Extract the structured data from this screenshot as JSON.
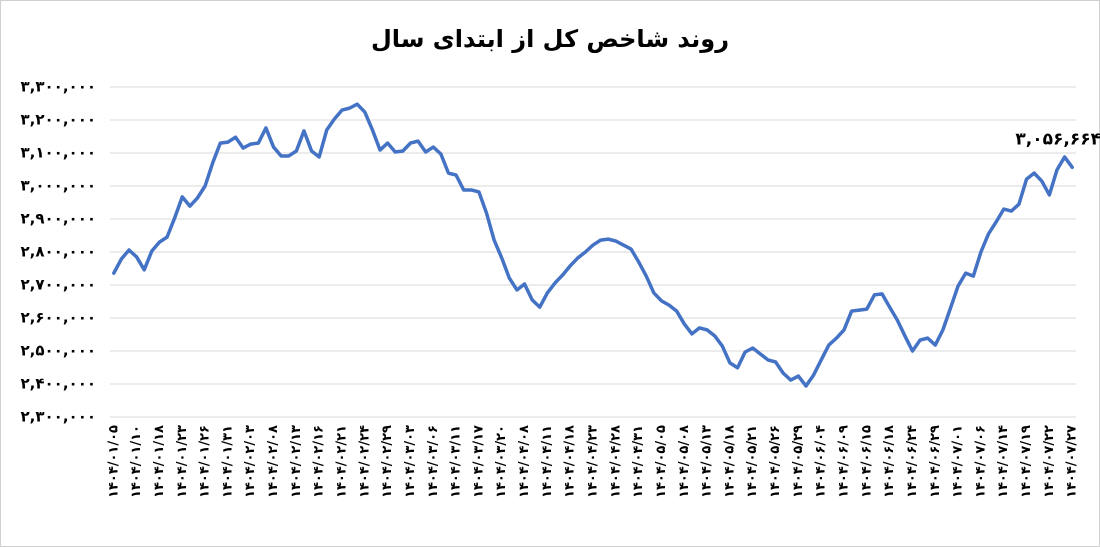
{
  "chart_data": {
    "type": "line",
    "title": "روند شاخص کل از ابتدای سال",
    "categories": [
      "۱۴۰۴/۰۱/۰۵",
      null,
      null,
      "۱۴۰۴/۰۱/۱۰",
      null,
      null,
      "۱۴۰۴/۰۱/۱۸",
      null,
      null,
      "۱۴۰۴/۰۱/۲۳",
      null,
      null,
      "۱۴۰۴/۰۱/۲۶",
      null,
      null,
      "۱۴۰۴/۰۱/۳۱",
      null,
      null,
      "۱۴۰۴/۰۲/۰۳",
      null,
      null,
      "۱۴۰۴/۰۲/۰۸",
      null,
      null,
      "۱۴۰۴/۰۲/۱۳",
      null,
      null,
      "۱۴۰۴/۰۲/۱۶",
      null,
      null,
      "۱۴۰۴/۰۲/۲۱",
      null,
      null,
      "۱۴۰۴/۰۲/۲۴",
      null,
      null,
      "۱۴۰۴/۰۲/۲۹",
      null,
      null,
      "۱۴۰۴/۰۳/۰۳",
      null,
      null,
      "۱۴۰۴/۰۳/۰۶",
      null,
      null,
      "۱۴۰۴/۰۳/۱۱",
      null,
      null,
      "۱۴۰۴/۰۳/۱۷",
      null,
      null,
      "۱۴۰۴/۰۳/۲۰",
      null,
      null,
      "۱۴۰۴/۰۴/۰۸",
      null,
      null,
      "۱۴۰۴/۰۴/۱۱",
      null,
      null,
      "۱۴۰۴/۰۴/۱۸",
      null,
      null,
      "۱۴۰۴/۰۴/۲۳",
      null,
      null,
      "۱۴۰۴/۰۴/۲۸",
      null,
      null,
      "۱۴۰۴/۰۴/۳۱",
      null,
      null,
      "۱۴۰۴/۰۵/۰۵",
      null,
      null,
      "۱۴۰۴/۰۵/۰۸",
      null,
      null,
      "۱۴۰۴/۰۵/۱۳",
      null,
      null,
      "۱۴۰۴/۰۵/۱۸",
      null,
      null,
      "۱۴۰۴/۰۵/۲۱",
      null,
      null,
      "۱۴۰۴/۰۵/۲۶",
      null,
      null,
      "۱۴۰۴/۰۵/۲۹",
      null,
      null,
      "۱۴۰۴/۰۶/۰۴",
      null,
      null,
      "۱۴۰۴/۰۶/۰۹",
      null,
      null,
      "۱۴۰۴/۰۶/۱۵",
      null,
      null,
      "۱۴۰۴/۰۶/۱۸",
      null,
      null,
      "۱۴۰۴/۰۶/۲۴",
      null,
      null,
      "۱۴۰۴/۰۶/۲۹",
      null,
      null,
      "۱۴۰۴/۰۷/۰۱",
      null,
      null,
      "۱۴۰۴/۰۷/۰۶",
      null,
      null,
      "۱۴۰۴/۰۷/۱۴",
      null,
      null,
      "۱۴۰۴/۰۷/۱۹",
      null,
      null,
      "۱۴۰۴/۰۷/۲۲",
      null,
      null,
      "۱۴۰۴/۰۷/۲۷"
    ],
    "values": [
      2736000,
      2779000,
      2806000,
      2785000,
      2746000,
      2803000,
      2830000,
      2845000,
      2903000,
      2967000,
      2939000,
      2964000,
      3000000,
      3070000,
      3130000,
      3133000,
      3148000,
      3115000,
      3127000,
      3130000,
      3176000,
      3118000,
      3091000,
      3091000,
      3106000,
      3167000,
      3106000,
      3088000,
      3170000,
      3203000,
      3230000,
      3236000,
      3248000,
      3224000,
      3170000,
      3109000,
      3130000,
      3103000,
      3106000,
      3130000,
      3136000,
      3103000,
      3118000,
      3097000,
      3039000,
      3033000,
      2988000,
      2988000,
      2982000,
      2918000,
      2836000,
      2782000,
      2721000,
      2685000,
      2703000,
      2655000,
      2633000,
      2676000,
      2706000,
      2730000,
      2758000,
      2782000,
      2800000,
      2821000,
      2836000,
      2839000,
      2833000,
      2821000,
      2809000,
      2770000,
      2727000,
      2676000,
      2652000,
      2639000,
      2621000,
      2582000,
      2552000,
      2570000,
      2564000,
      2546000,
      2515000,
      2464000,
      2449000,
      2497000,
      2509000,
      2491000,
      2473000,
      2467000,
      2433000,
      2412000,
      2424000,
      2394000,
      2427000,
      2473000,
      2518000,
      2539000,
      2564000,
      2621000,
      2624000,
      2627000,
      2670000,
      2673000,
      2633000,
      2594000,
      2546000,
      2500000,
      2533000,
      2539000,
      2518000,
      2564000,
      2630000,
      2697000,
      2736000,
      2727000,
      2800000,
      2855000,
      2891000,
      2930000,
      2924000,
      2945000,
      3021000,
      3039000,
      3015000,
      2973000,
      3049000,
      3088000,
      3056664
    ],
    "value_labels": [
      null,
      null,
      null,
      null,
      null,
      null,
      null,
      null,
      null,
      null,
      null,
      null,
      null,
      null,
      null,
      null,
      null,
      null,
      null,
      null,
      null,
      null,
      null,
      null,
      null,
      null,
      null,
      null,
      null,
      null,
      null,
      null,
      null,
      null,
      null,
      null,
      null,
      null,
      null,
      null,
      null,
      null,
      null,
      null,
      null,
      null,
      null,
      null,
      null,
      null,
      null,
      null,
      null,
      null,
      null,
      null,
      null,
      null,
      null,
      null,
      null,
      null,
      null,
      null,
      null,
      null,
      null,
      null,
      null,
      null,
      null,
      null,
      null,
      null,
      null,
      null,
      null,
      null,
      null,
      null,
      null,
      null,
      null,
      null,
      null,
      null,
      null,
      null,
      null,
      null,
      null,
      null,
      null,
      null,
      null,
      null,
      null,
      null,
      null,
      null,
      null,
      null,
      null,
      null,
      null,
      null,
      null,
      null,
      null,
      null,
      null,
      null,
      null,
      null,
      null,
      null,
      null,
      null,
      null,
      null,
      null,
      null,
      null,
      null,
      null,
      null,
      "۳,۰۵۶,۶۶۴"
    ],
    "color": "#4472c4",
    "ylim": [
      2300000,
      3300000
    ],
    "yticks": [
      {
        "value": 2300000,
        "label": "۲,۳۰۰,۰۰۰"
      },
      {
        "value": 2400000,
        "label": "۲,۴۰۰,۰۰۰"
      },
      {
        "value": 2500000,
        "label": "۲,۵۰۰,۰۰۰"
      },
      {
        "value": 2600000,
        "label": "۲,۶۰۰,۰۰۰"
      },
      {
        "value": 2700000,
        "label": "۲,۷۰۰,۰۰۰"
      },
      {
        "value": 2800000,
        "label": "۲,۸۰۰,۰۰۰"
      },
      {
        "value": 2900000,
        "label": "۲,۹۰۰,۰۰۰"
      },
      {
        "value": 3000000,
        "label": "۳,۰۰۰,۰۰۰"
      },
      {
        "value": 3100000,
        "label": "۳,۱۰۰,۰۰۰"
      },
      {
        "value": 3200000,
        "label": "۳,۲۰۰,۰۰۰"
      },
      {
        "value": 3300000,
        "label": "۳,۳۰۰,۰۰۰"
      }
    ],
    "grid": true
  }
}
